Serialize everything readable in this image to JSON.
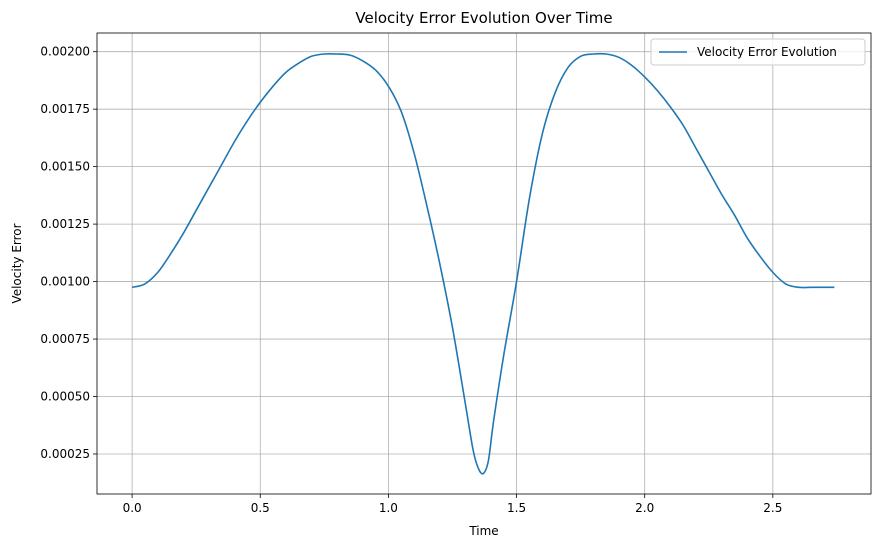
{
  "chart_data": {
    "type": "line",
    "title": "Velocity Error Evolution Over Time",
    "xlabel": "Time",
    "ylabel": "Velocity Error",
    "xlim": [
      -0.137,
      2.883
    ],
    "ylim": [
      7.6e-05,
      0.0020813
    ],
    "grid": true,
    "legend_position": "top-right",
    "xticks": [
      0.0,
      0.5,
      1.0,
      1.5,
      2.0,
      2.5
    ],
    "xtick_labels": [
      "0.0",
      "0.5",
      "1.0",
      "1.5",
      "2.0",
      "2.5"
    ],
    "yticks": [
      0.00025,
      0.0005,
      0.00075,
      0.001,
      0.00125,
      0.0015,
      0.00175,
      0.002
    ],
    "ytick_labels": [
      "0.00025",
      "0.00050",
      "0.00075",
      "0.00100",
      "0.00125",
      "0.00150",
      "0.00175",
      "0.00200"
    ],
    "series": [
      {
        "name": "Velocity Error Evolution",
        "color": "#1f77b4",
        "x": [
          0.0,
          0.05,
          0.1,
          0.15,
          0.2,
          0.25,
          0.3,
          0.35,
          0.4,
          0.45,
          0.5,
          0.55,
          0.6,
          0.65,
          0.7,
          0.75,
          0.8,
          0.85,
          0.9,
          0.95,
          1.0,
          1.05,
          1.1,
          1.15,
          1.2,
          1.25,
          1.3,
          1.33,
          1.35,
          1.37,
          1.39,
          1.41,
          1.45,
          1.5,
          1.55,
          1.6,
          1.65,
          1.7,
          1.75,
          1.8,
          1.85,
          1.9,
          1.95,
          2.0,
          2.05,
          2.1,
          2.15,
          2.2,
          2.25,
          2.3,
          2.35,
          2.4,
          2.45,
          2.5,
          2.55,
          2.6,
          2.65,
          2.7,
          2.74
        ],
        "y": [
          0.000975,
          0.00099,
          0.00104,
          0.00112,
          0.00121,
          0.00131,
          0.00141,
          0.00151,
          0.00161,
          0.0017,
          0.00178,
          0.00185,
          0.00191,
          0.00195,
          0.00198,
          0.00199,
          0.00199,
          0.001985,
          0.00196,
          0.00192,
          0.00185,
          0.00174,
          0.00156,
          0.00133,
          0.00108,
          0.0008,
          0.00047,
          0.00027,
          0.00019,
          0.000165,
          0.00022,
          0.00039,
          0.00068,
          0.001,
          0.00136,
          0.00164,
          0.00182,
          0.00193,
          0.00198,
          0.00199,
          0.00199,
          0.001975,
          0.00194,
          0.00189,
          0.00183,
          0.00176,
          0.00168,
          0.00158,
          0.00148,
          0.00138,
          0.00129,
          0.00119,
          0.00111,
          0.00104,
          0.00099,
          0.000975,
          0.000975,
          0.000975,
          0.000975
        ]
      }
    ]
  }
}
